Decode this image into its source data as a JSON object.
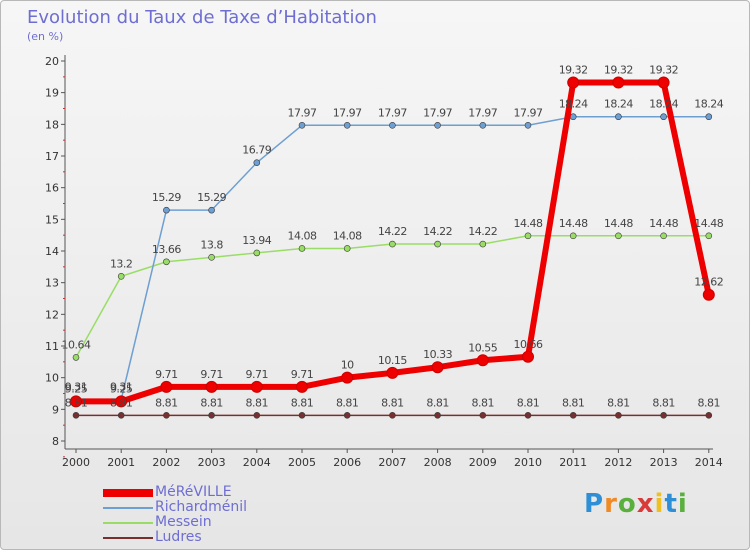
{
  "chart_data": {
    "type": "line",
    "title": "Evolution du Taux de Taxe d’Habitation",
    "unit_label": "(en %)",
    "x": [
      "2000",
      "2001",
      "2002",
      "2003",
      "2004",
      "2005",
      "2006",
      "2007",
      "2008",
      "2009",
      "2010",
      "2011",
      "2012",
      "2013",
      "2014"
    ],
    "ylim": [
      8,
      20
    ],
    "yticks": [
      "8",
      "9",
      "10",
      "11",
      "12",
      "13",
      "14",
      "15",
      "16",
      "17",
      "18",
      "19",
      "20"
    ],
    "grid": false,
    "legend_position": "bottom-left",
    "series": [
      {
        "name": "MéRéVILLE",
        "color": "#ee0000",
        "values": [
          9.25,
          9.25,
          9.71,
          9.71,
          9.71,
          9.71,
          10,
          10.15,
          10.33,
          10.55,
          10.66,
          19.32,
          19.32,
          19.32,
          12.62
        ],
        "labels": [
          "9.25",
          "9.25",
          "9.71",
          "9.71",
          "9.71",
          "9.71",
          "10",
          "10.15",
          "10.33",
          "10.55",
          "10.66",
          "19.32",
          "19.32",
          "19.32",
          "12.62"
        ]
      },
      {
        "name": "Richardménil",
        "color": "#6e9fd2",
        "values": [
          9.31,
          9.31,
          15.29,
          15.29,
          16.79,
          17.97,
          17.97,
          17.97,
          17.97,
          17.97,
          17.97,
          18.24,
          18.24,
          18.24,
          18.24
        ],
        "labels": [
          "9.31",
          "9.31",
          "15.29",
          "15.29",
          "16.79",
          "17.97",
          "17.97",
          "17.97",
          "17.97",
          "17.97",
          "17.97",
          "18.24",
          "18.24",
          "18.24",
          "18.24"
        ]
      },
      {
        "name": "Messein",
        "color": "#99dd66",
        "values": [
          10.64,
          13.2,
          13.66,
          13.8,
          13.94,
          14.08,
          14.08,
          14.22,
          14.22,
          14.22,
          14.48,
          14.48,
          14.48,
          14.48,
          14.48
        ],
        "labels": [
          "10.64",
          "13.2",
          "13.66",
          "13.8",
          "13.94",
          "14.08",
          "14.08",
          "14.22",
          "14.22",
          "14.22",
          "14.48",
          "14.48",
          "14.48",
          "14.48",
          "14.48"
        ]
      },
      {
        "name": "Ludres",
        "color": "#7a2f2f",
        "values": [
          8.81,
          8.81,
          8.81,
          8.81,
          8.81,
          8.81,
          8.81,
          8.81,
          8.81,
          8.81,
          8.81,
          8.81,
          8.81,
          8.81,
          8.81
        ],
        "labels": [
          "8.81",
          "8.81",
          "8.81",
          "8.81",
          "8.81",
          "8.81",
          "8.81",
          "8.81",
          "8.81",
          "8.81",
          "8.81",
          "8.81",
          "8.81",
          "8.81",
          "8.81"
        ]
      }
    ]
  },
  "logo": {
    "letters": [
      "P",
      "r",
      "o",
      "x",
      "i",
      "t",
      "i"
    ],
    "colors": [
      "#2e8fd6",
      "#f08a24",
      "#5ab03c",
      "#d93a3a",
      "#f0c020",
      "#2e8fd6",
      "#5ab03c"
    ]
  }
}
